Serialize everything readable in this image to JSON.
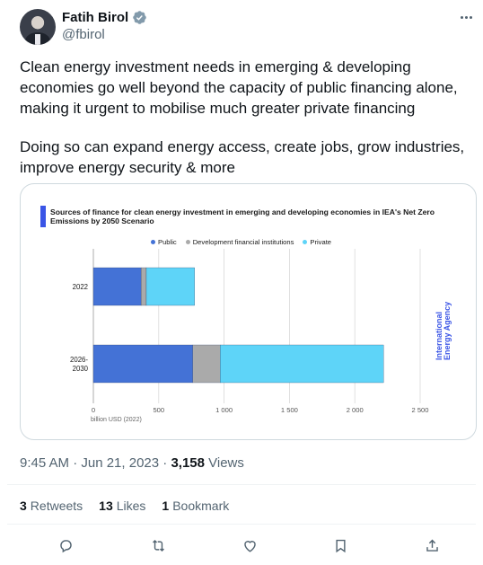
{
  "author": {
    "name": "Fatih Birol",
    "handle": "@fbirol"
  },
  "tweet": {
    "paragraph1": "Clean energy investment needs in emerging & developing economies go well beyond the capacity of public financing alone, making it urgent to mobilise much greater private financing",
    "paragraph2": "Doing so can expand energy access, create jobs, grow industries, improve energy security & more"
  },
  "meta": {
    "time": "9:45 AM · Jun 21, 2023 · ",
    "views_count": "3,158",
    "views_label": " Views"
  },
  "stats": {
    "retweets_count": "3",
    "retweets_label": "Retweets",
    "likes_count": "13",
    "likes_label": "Likes",
    "bookmarks_count": "1",
    "bookmarks_label": "Bookmark"
  },
  "card": {
    "brand": "International Energy Agency",
    "brand_line1": "International",
    "brand_line2": "Energy Agency"
  },
  "chart_data": {
    "type": "bar",
    "orientation": "horizontal",
    "stacked": true,
    "title": "Sources of finance for clean energy investment in emerging and developing economies in IEA's Net Zero Emissions by 2050 Scenario",
    "categories": [
      "2022",
      "2026-\n2030"
    ],
    "category_lines": [
      [
        "2022"
      ],
      [
        "2026-",
        "2030"
      ]
    ],
    "series": [
      {
        "name": "Public",
        "values": [
          365,
          760
        ],
        "color": "#4472d6"
      },
      {
        "name": "Development financial institutions",
        "values": [
          40,
          210
        ],
        "color": "#aaaaaa"
      },
      {
        "name": "Private",
        "values": [
          370,
          1250
        ],
        "color": "#5ed4f8"
      }
    ],
    "xlabel": "billion USD (2022)",
    "xlim": [
      0,
      2500
    ],
    "xticks": [
      0,
      500,
      1000,
      1500,
      2000,
      2500
    ],
    "xtick_labels": [
      "0",
      "500",
      "1 000",
      "1 500",
      "2 000",
      "2 500"
    ],
    "grid": "vertical",
    "legend": "top"
  }
}
